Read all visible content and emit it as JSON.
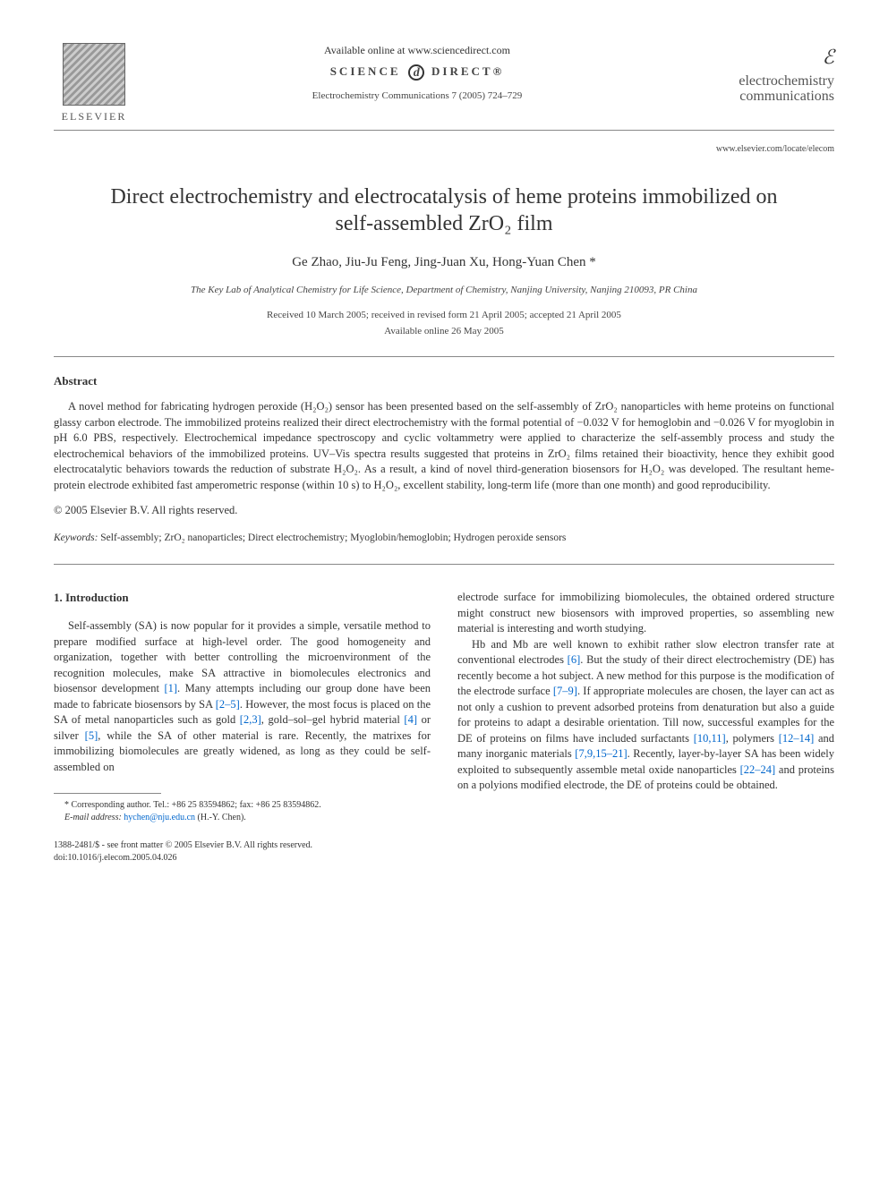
{
  "header": {
    "publisher": "ELSEVIER",
    "available_online": "Available online at www.sciencedirect.com",
    "sciencedirect_left": "SCIENCE",
    "sciencedirect_right": "DIRECT®",
    "journal_ref": "Electrochemistry Communications 7 (2005) 724–729",
    "journal_symbol": "ℰ",
    "journal_name_line1": "electrochemistry",
    "journal_name_line2": "communications",
    "locate_url": "www.elsevier.com/locate/elecom"
  },
  "title": "Direct electrochemistry and electrocatalysis of heme proteins immobilized on self-assembled ZrO₂ film",
  "authors": "Ge Zhao, Jiu-Ju Feng, Jing-Juan Xu, Hong-Yuan Chen *",
  "affiliation": "The Key Lab of Analytical Chemistry for Life Science, Department of Chemistry, Nanjing University, Nanjing 210093, PR China",
  "dates_line1": "Received 10 March 2005; received in revised form 21 April 2005; accepted 21 April 2005",
  "dates_line2": "Available online 26 May 2005",
  "abstract": {
    "heading": "Abstract",
    "text": "A novel method for fabricating hydrogen peroxide (H₂O₂) sensor has been presented based on the self-assembly of ZrO₂ nanoparticles with heme proteins on functional glassy carbon electrode. The immobilized proteins realized their direct electrochemistry with the formal potential of −0.032 V for hemoglobin and −0.026 V for myoglobin in pH 6.0 PBS, respectively. Electrochemical impedance spectroscopy and cyclic voltammetry were applied to characterize the self-assembly process and study the electrochemical behaviors of the immobilized proteins. UV–Vis spectra results suggested that proteins in ZrO₂ films retained their bioactivity, hence they exhibit good electrocatalytic behaviors towards the reduction of substrate H₂O₂. As a result, a kind of novel third-generation biosensors for H₂O₂ was developed. The resultant heme-protein electrode exhibited fast amperometric response (within 10 s) to H₂O₂, excellent stability, long-term life (more than one month) and good reproducibility.",
    "copyright": "© 2005 Elsevier B.V. All rights reserved."
  },
  "keywords": {
    "label": "Keywords:",
    "text": " Self-assembly; ZrO₂ nanoparticles; Direct electrochemistry; Myoglobin/hemoglobin; Hydrogen peroxide sensors"
  },
  "section1": {
    "heading": "1. Introduction",
    "col1_p1_a": "Self-assembly (SA) is now popular for it provides a simple, versatile method to prepare modified surface at high-level order. The good homogeneity and organization, together with better controlling the microenvironment of the recognition molecules, make SA attractive in biomolecules electronics and biosensor development ",
    "col1_ref1": "[1]",
    "col1_p1_b": ". Many attempts including our group done have been made to fabricate biosensors by SA ",
    "col1_ref2": "[2–5]",
    "col1_p1_c": ". However, the most focus is placed on the SA of metal nanoparticles such as gold ",
    "col1_ref3": "[2,3]",
    "col1_p1_d": ", gold–sol–gel hybrid material ",
    "col1_ref4": "[4]",
    "col1_p1_e": " or silver ",
    "col1_ref5": "[5]",
    "col1_p1_f": ", while the SA of other material is rare. Recently, the matrixes for immobilizing biomolecules are greatly widened, as long as they could be self-assembled on",
    "col2_p1": "electrode surface for immobilizing biomolecules, the obtained ordered structure might construct new biosensors with improved properties, so assembling new material is interesting and worth studying.",
    "col2_p2_a": "Hb and Mb are well known to exhibit rather slow electron transfer rate at conventional electrodes ",
    "col2_ref6": "[6]",
    "col2_p2_b": ". But the study of their direct electrochemistry (DE) has recently become a hot subject. A new method for this purpose is the modification of the electrode surface ",
    "col2_ref7": "[7–9]",
    "col2_p2_c": ". If appropriate molecules are chosen, the layer can act as not only a cushion to prevent adsorbed proteins from denaturation but also a guide for proteins to adapt a desirable orientation. Till now, successful examples for the DE of proteins on films have included surfactants ",
    "col2_ref8": "[10,11]",
    "col2_p2_d": ", polymers ",
    "col2_ref9": "[12–14]",
    "col2_p2_e": " and many inorganic materials ",
    "col2_ref10": "[7,9,15–21]",
    "col2_p2_f": ". Recently, layer-by-layer SA has been widely exploited to subsequently assemble metal oxide nanoparticles ",
    "col2_ref11": "[22–24]",
    "col2_p2_g": " and proteins on a polyions modified electrode, the DE of proteins could be obtained."
  },
  "footnotes": {
    "corr": "* Corresponding author. Tel.: +86 25 83594862; fax: +86 25 83594862.",
    "email_label": "E-mail address:",
    "email": " hychen@nju.edu.cn ",
    "email_suffix": "(H.-Y. Chen)."
  },
  "bottom": {
    "line1": "1388-2481/$ - see front matter © 2005 Elsevier B.V. All rights reserved.",
    "line2": "doi:10.1016/j.elecom.2005.04.026"
  }
}
